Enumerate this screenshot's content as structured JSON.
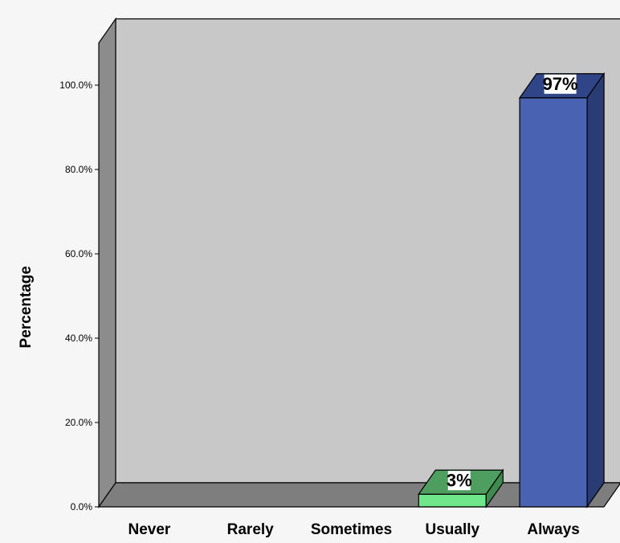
{
  "chart_data": {
    "type": "bar",
    "title": "",
    "xlabel": "",
    "ylabel": "Percentage",
    "categories": [
      "Never",
      "Rarely",
      "Sometimes",
      "Usually",
      "Always"
    ],
    "values": [
      0,
      0,
      0,
      3,
      97
    ],
    "data_labels": [
      "",
      "",
      "",
      "3%",
      "97%"
    ],
    "y_ticks": [
      0,
      20,
      40,
      60,
      80,
      100
    ],
    "y_tick_labels": [
      "0.0%",
      "20.0%",
      "40.0%",
      "60.0%",
      "80.0%",
      "100.0%"
    ],
    "ylim": [
      0,
      110
    ],
    "grid": false,
    "legend": "none",
    "style": "3d",
    "colors": {
      "back_wall": "#c8c8c8",
      "side_wall": "#8c8c8c",
      "floor": "#7e7e7e",
      "page_background": "#f6f6f6",
      "bar_colors": [
        "",
        "",
        "",
        "#6fe68a",
        "#4a62b2"
      ],
      "bar_top_colors": [
        "",
        "",
        "",
        "#4e9e60",
        "#2f4588"
      ],
      "bar_side_colors": [
        "",
        "",
        "",
        "#3f8a4f",
        "#2a3c74"
      ]
    }
  }
}
